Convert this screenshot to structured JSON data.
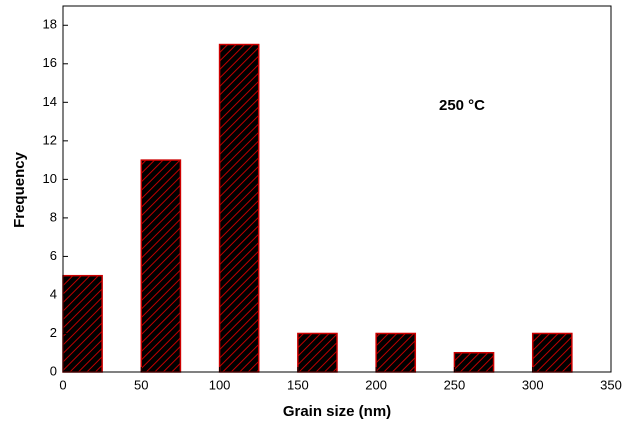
{
  "chart_data": {
    "type": "histogram",
    "annotation": "250 °C",
    "x_label": "Grain size (nm)",
    "y_label": "Frequency",
    "bins": [
      0,
      25,
      50,
      75,
      100,
      125,
      150,
      175,
      200,
      225,
      250,
      275,
      300,
      325
    ],
    "values": [
      5,
      0,
      11,
      0,
      17,
      0,
      2,
      0,
      2,
      0,
      1,
      0,
      2
    ],
    "color": "#cc0000",
    "xlim": [
      0,
      350
    ],
    "xticks": [
      0,
      50,
      100,
      150,
      200,
      250,
      300,
      350
    ],
    "ylim": [
      0,
      19
    ],
    "yticks": [
      0,
      2,
      4,
      6,
      8,
      10,
      12,
      14,
      16,
      18
    ]
  }
}
